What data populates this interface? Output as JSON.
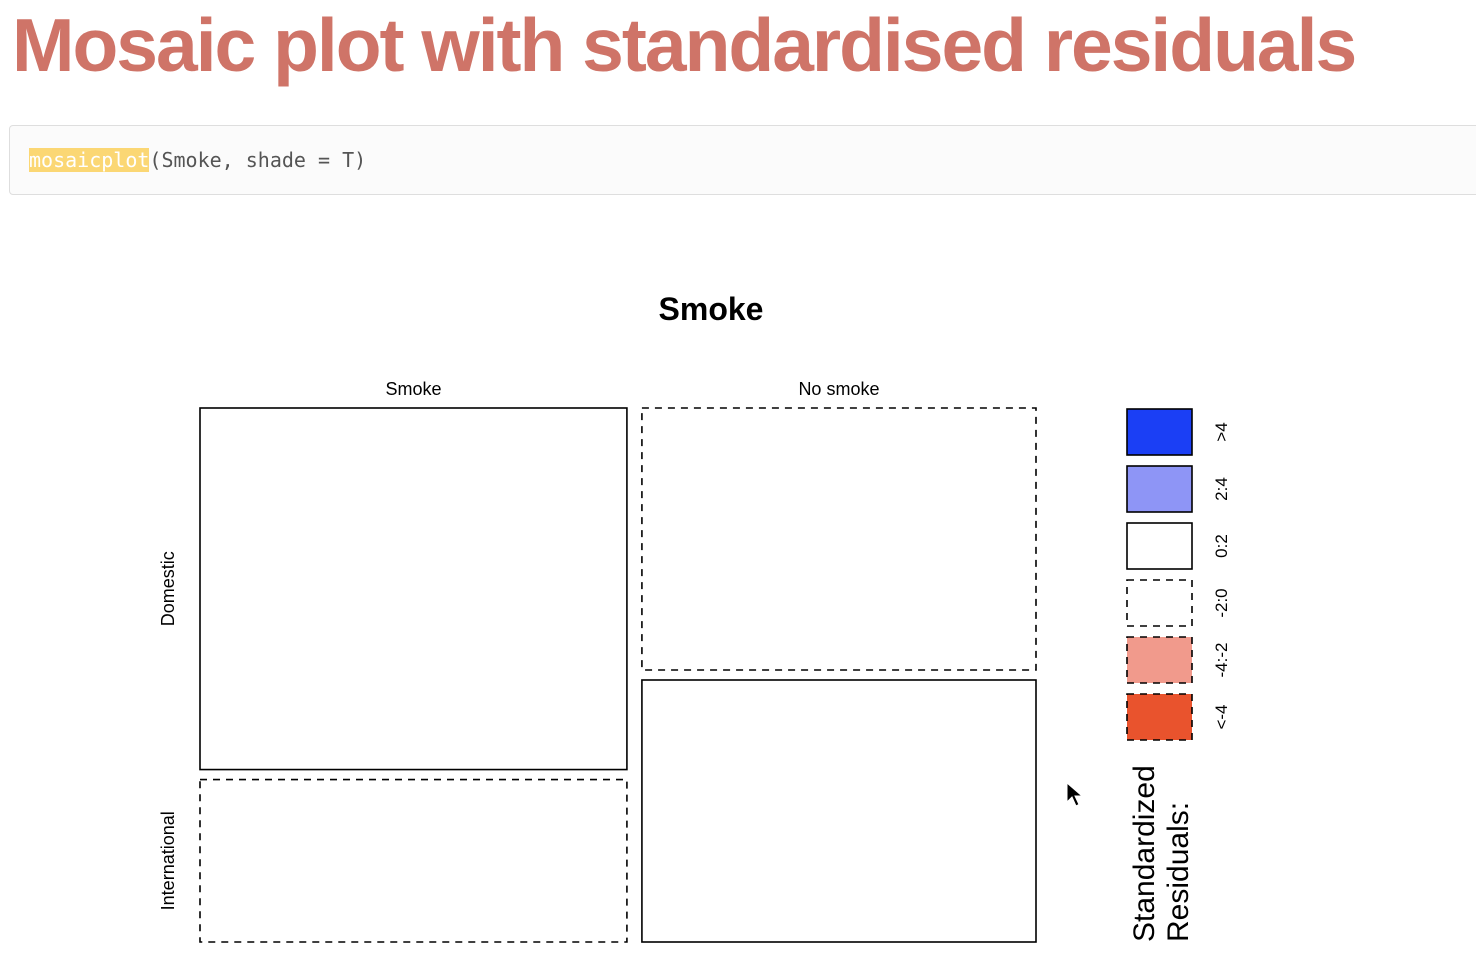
{
  "slide": {
    "title": "Mosaic plot with standardised residuals"
  },
  "code": {
    "function_name": "mosaicplot",
    "arguments": "(Smoke, shade = T)"
  },
  "colors": {
    "title": "#cf7468",
    "highlight": "#fbd774",
    "residual_gt4": "#1b3ff5",
    "residual_2_4": "#8e95f6",
    "residual_neg4_neg2": "#f19a8c",
    "residual_lt_neg4": "#e9532d"
  },
  "chart_data": {
    "type": "mosaic",
    "title": "Smoke",
    "columns": [
      "Smoke",
      "No smoke"
    ],
    "rows": [
      "Domestic",
      "International"
    ],
    "column_proportions": [
      0.52,
      0.48
    ],
    "cells": [
      {
        "column": "Smoke",
        "row": "Domestic",
        "proportion_within_column": 0.69,
        "residual_class": "0:2"
      },
      {
        "column": "Smoke",
        "row": "International",
        "proportion_within_column": 0.31,
        "residual_class": "-2:0"
      },
      {
        "column": "No smoke",
        "row": "Domestic",
        "proportion_within_column": 0.5,
        "residual_class": "-2:0"
      },
      {
        "column": "No smoke",
        "row": "International",
        "proportion_within_column": 0.5,
        "residual_class": "0:2"
      }
    ],
    "legend": {
      "title": "Standardized Residuals:",
      "placement": "right",
      "items": [
        {
          "label": ">4",
          "fill": "#1b3ff5",
          "border": "solid"
        },
        {
          "label": "2:4",
          "fill": "#8e95f6",
          "border": "solid"
        },
        {
          "label": "0:2",
          "fill": "#ffffff",
          "border": "solid"
        },
        {
          "label": "-2:0",
          "fill": "#ffffff",
          "border": "dashed"
        },
        {
          "label": "-4:-2",
          "fill": "#f19a8c",
          "border": "dashed"
        },
        {
          "label": "<-4",
          "fill": "#e9532d",
          "border": "dashed"
        }
      ]
    }
  }
}
